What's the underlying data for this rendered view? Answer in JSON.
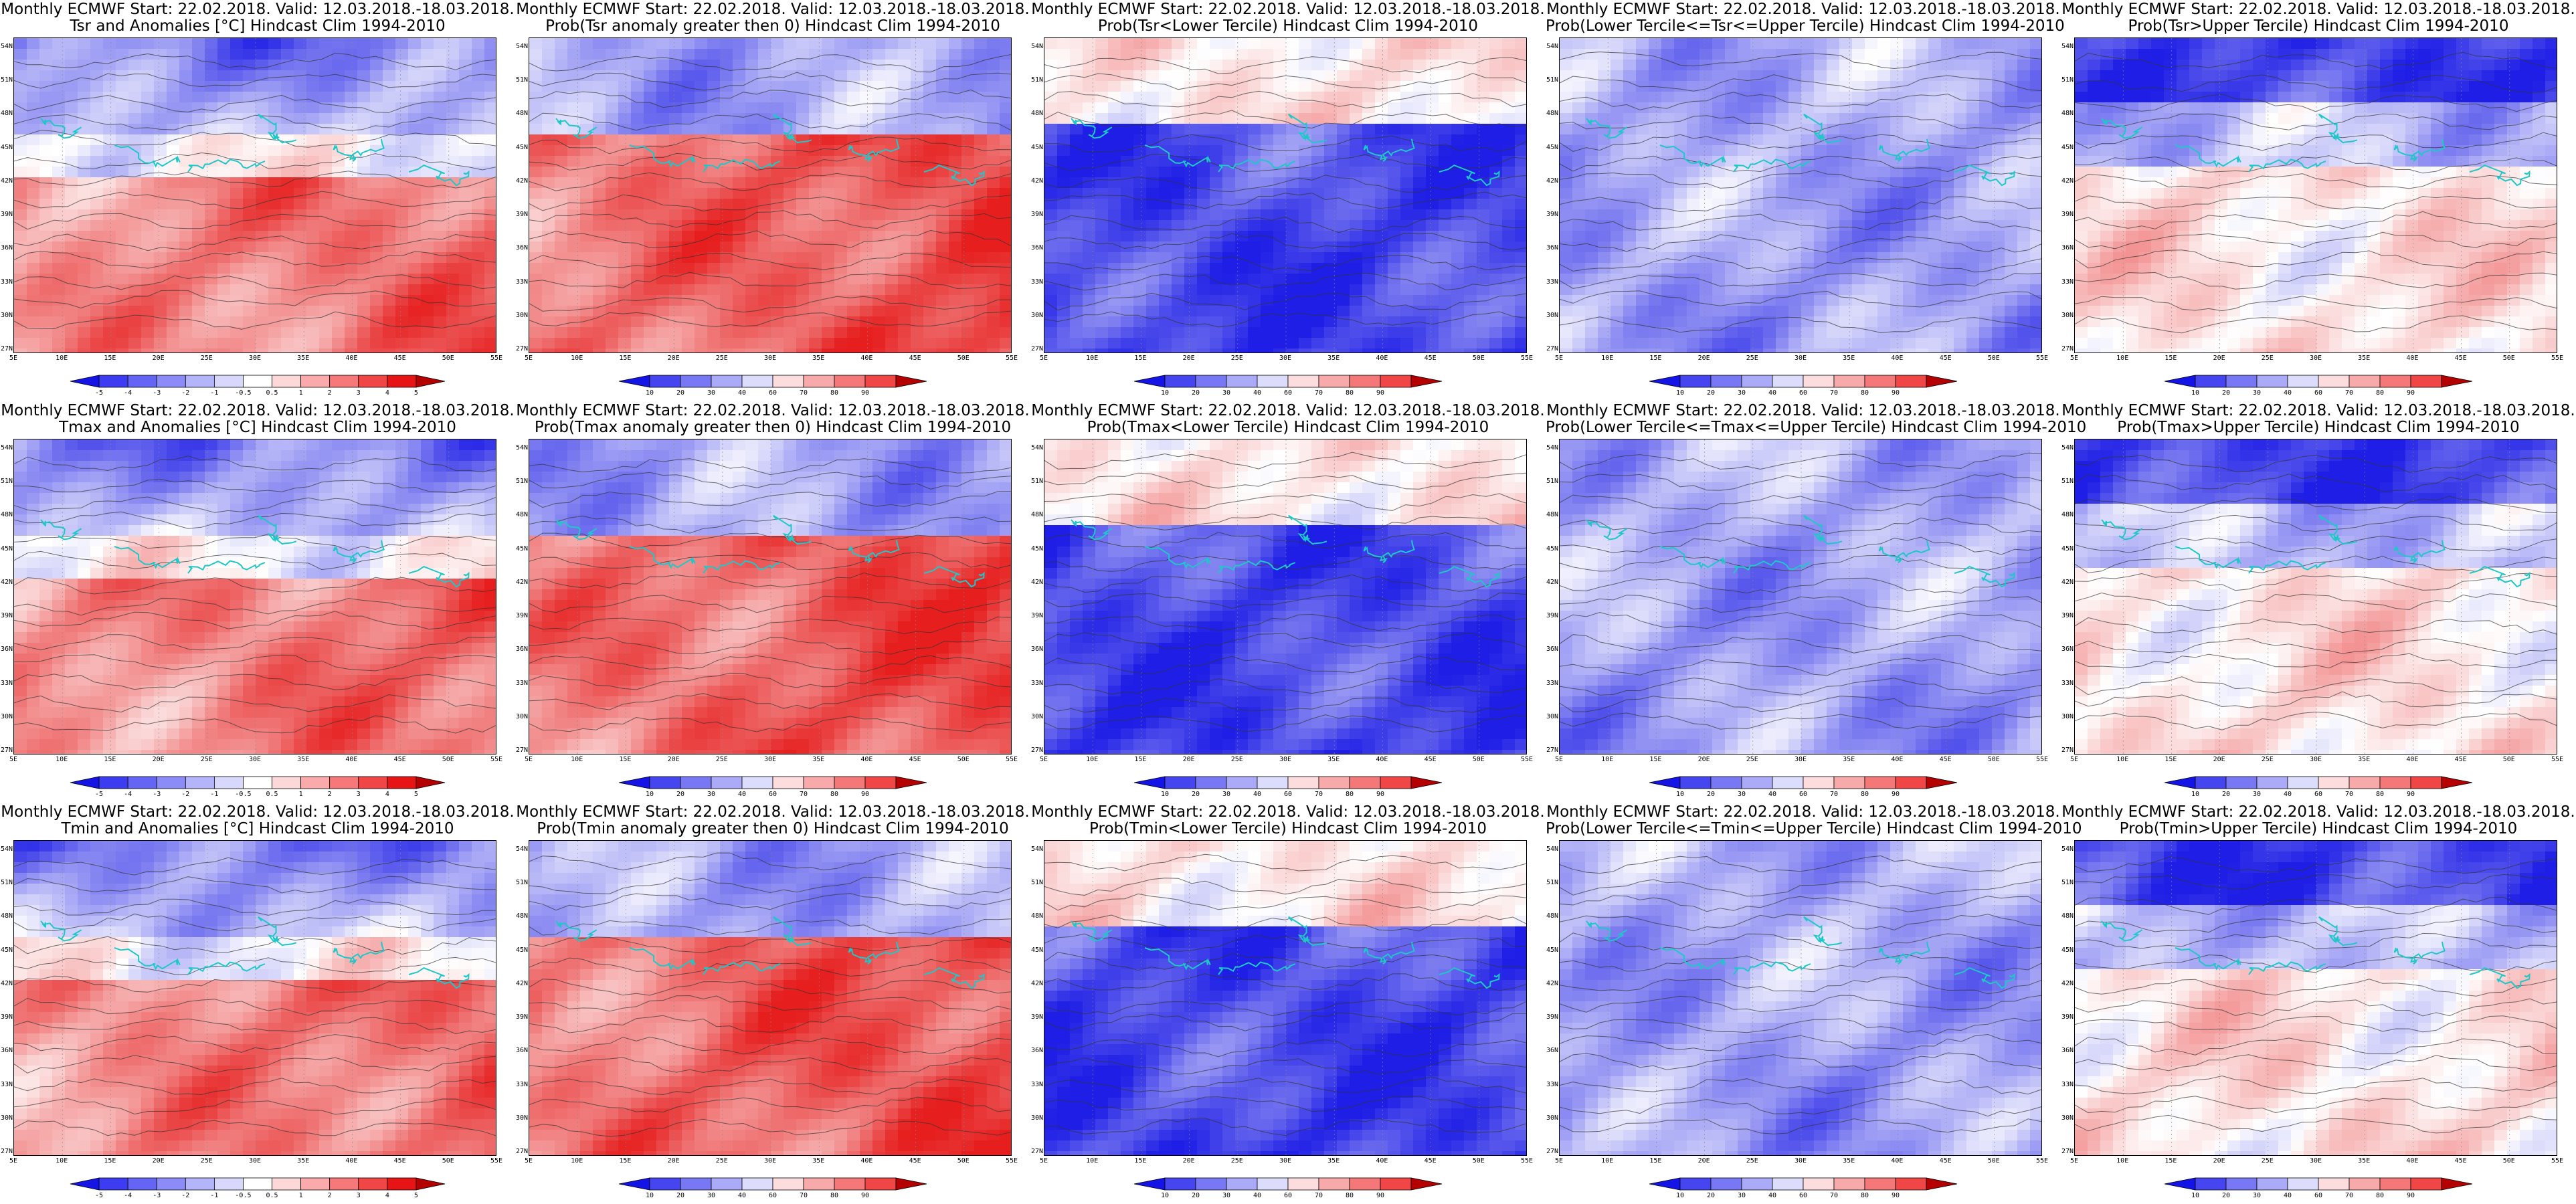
{
  "panel_titles": [
    [
      "Monthly ECMWF Start: 22.02.2018. Valid: 12.03.2018.-18.03.2018.",
      "Tsr and Anomalies [°C] Hindcast Clim 1994-2010"
    ],
    [
      "Monthly ECMWF Start: 22.02.2018. Valid: 12.03.2018.-18.03.2018.",
      "Prob(Tsr anomaly greater then 0) Hindcast Clim 1994-2010"
    ],
    [
      "Monthly ECMWF Start: 22.02.2018. Valid: 12.03.2018.-18.03.2018.",
      "Prob(Tsr<Lower Tercile) Hindcast Clim 1994-2010"
    ],
    [
      "Monthly ECMWF Start: 22.02.2018. Valid: 12.03.2018.-18.03.2018.",
      "Prob(Lower Tercile<=Tsr<=Upper Tercile) Hindcast Clim 1994-2010"
    ],
    [
      "Monthly ECMWF Start: 22.02.2018. Valid: 12.03.2018.-18.03.2018.",
      "Prob(Tsr>Upper Tercile) Hindcast Clim 1994-2010"
    ],
    [
      "Monthly ECMWF Start: 22.02.2018. Valid: 12.03.2018.-18.03.2018.",
      "Tmax and Anomalies [°C] Hindcast Clim 1994-2010"
    ],
    [
      "Monthly ECMWF Start: 22.02.2018. Valid: 12.03.2018.-18.03.2018.",
      "Prob(Tmax anomaly greater then 0) Hindcast Clim 1994-2010"
    ],
    [
      "Monthly ECMWF Start: 22.02.2018. Valid: 12.03.2018.-18.03.2018.",
      "Prob(Tmax<Lower Tercile) Hindcast Clim 1994-2010"
    ],
    [
      "Monthly ECMWF Start: 22.02.2018. Valid: 12.03.2018.-18.03.2018.",
      "Prob(Lower Tercile<=Tmax<=Upper Tercile) Hindcast Clim 1994-2010"
    ],
    [
      "Monthly ECMWF Start: 22.02.2018. Valid: 12.03.2018.-18.03.2018.",
      "Prob(Tmax>Upper Tercile) Hindcast Clim 1994-2010"
    ],
    [
      "Monthly ECMWF Start: 22.02.2018. Valid: 12.03.2018.-18.03.2018.",
      "Tmin and Anomalies [°C] Hindcast Clim 1994-2010"
    ],
    [
      "Monthly ECMWF Start: 22.02.2018. Valid: 12.03.2018.-18.03.2018.",
      "Prob(Tmin anomaly greater then 0) Hindcast Clim 1994-2010"
    ],
    [
      "Monthly ECMWF Start: 22.02.2018. Valid: 12.03.2018.-18.03.2018.",
      "Prob(Tmin<Lower Tercile) Hindcast Clim 1994-2010"
    ],
    [
      "Monthly ECMWF Start: 22.02.2018. Valid: 12.03.2018.-18.03.2018.",
      "Prob(Lower Tercile<=Tmin<=Upper Tercile) Hindcast Clim 1994-2010"
    ],
    [
      "Monthly ECMWF Start: 22.02.2018. Valid: 12.03.2018.-18.03.2018.",
      "Prob(Tmin>Upper Tercile) Hindcast Clim 1994-2010"
    ]
  ],
  "panel_kinds": [
    "anom",
    "prob",
    "lower",
    "normal",
    "upper",
    "anom",
    "prob",
    "lower",
    "normal",
    "upper",
    "anom",
    "prob",
    "lower",
    "normal",
    "upper"
  ],
  "lat_labels": [
    "54N",
    "51N",
    "48N",
    "45N",
    "42N",
    "39N",
    "36N",
    "33N",
    "30N",
    "27N"
  ],
  "lon_labels": [
    "5E",
    "10E",
    "15E",
    "20E",
    "25E",
    "30E",
    "35E",
    "40E",
    "45E",
    "50E",
    "55E"
  ],
  "colorbars": {
    "anom": {
      "labels": [
        "-5",
        "-4",
        "-3",
        "-2",
        "-1",
        "-0.5",
        "0.5",
        "1",
        "2",
        "3",
        "4",
        "5"
      ],
      "colors": [
        "#1414e6",
        "#3c3cf0",
        "#6464f5",
        "#8c8cf8",
        "#b4b4fa",
        "#d8d8fc",
        "#ffffff",
        "#fcd8d8",
        "#faaaaa",
        "#f77878",
        "#f04646",
        "#e61414",
        "#b40000"
      ]
    },
    "prob": {
      "labels": [
        "10",
        "20",
        "30",
        "40",
        "60",
        "70",
        "80",
        "90"
      ],
      "colors": [
        "#1414e6",
        "#4646f0",
        "#7878f5",
        "#aaaaf8",
        "#dcdcfc",
        "#fcdcdc",
        "#f8aaaa",
        "#f57878",
        "#f04646",
        "#b40000"
      ]
    }
  },
  "colors": {
    "land_outline": "#1ec8c8",
    "contour": "#333333",
    "blue": "#3232e6",
    "red": "#e63232"
  }
}
